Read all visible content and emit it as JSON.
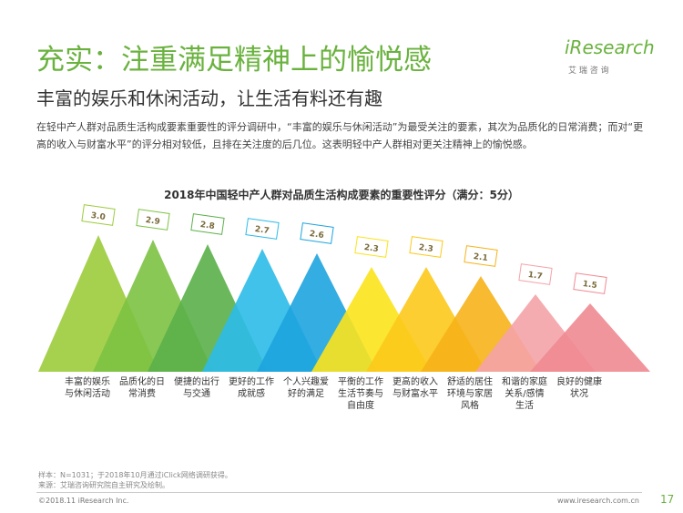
{
  "header": {
    "title": "充实：注重满足精神上的愉悦感",
    "subtitle": "丰富的娱乐和休闲活动，让生活有料还有趣",
    "description": "在轻中产人群对品质生活构成要素重要性的评分调研中，“丰富的娱乐与休闲活动”为最受关注的要素，其次为品质化的日常消费；而对“更高的收入与财富水平”的评分相对较低，且排在关注度的后几位。这表明轻中产人群相对更关注精神上的愉悦感。"
  },
  "logo": {
    "name": "iResearch",
    "tagline": "艾 瑞 咨 询"
  },
  "chart_data": {
    "type": "mountain",
    "title": "2018年中国轻中产人群对品质生活构成要素的重要性评分（满分：5分）",
    "categories": [
      "丰富的娱乐\n与休闲活动",
      "品质化的日\n常消费",
      "便捷的出行\n与交通",
      "更好的工作\n成就感",
      "个人兴趣爱\n好的满足",
      "平衡的工作\n生活节奏与\n自由度",
      "更高的收入\n与财富水平",
      "舒适的居住\n环境与家居\n风格",
      "和谐的家庭\n关系/感情\n生活",
      "良好的健康\n状况"
    ],
    "values": [
      3.0,
      2.9,
      2.8,
      2.7,
      2.6,
      2.3,
      2.3,
      2.1,
      1.7,
      1.5
    ],
    "value_labels": [
      "3.0",
      "2.9",
      "2.8",
      "2.7",
      "2.6",
      "2.3",
      "2.3",
      "2.1",
      "1.7",
      "1.5"
    ],
    "colors": [
      "#9ccc3c",
      "#7dc242",
      "#5bb04a",
      "#2cbbe8",
      "#1ea4df",
      "#fbe31c",
      "#fcc91b",
      "#f6b21a",
      "#f4a3a8",
      "#ef8a92"
    ]
  },
  "notes": [
    "样本：N=1031；于2018年10月通过iClick网络调研获得。",
    "来源：艾瑞咨询研究院自主研究及绘制。"
  ],
  "footer": {
    "copyright": "©2018.11 iResearch Inc.",
    "website": "www.iresearch.com.cn",
    "page": "17"
  }
}
